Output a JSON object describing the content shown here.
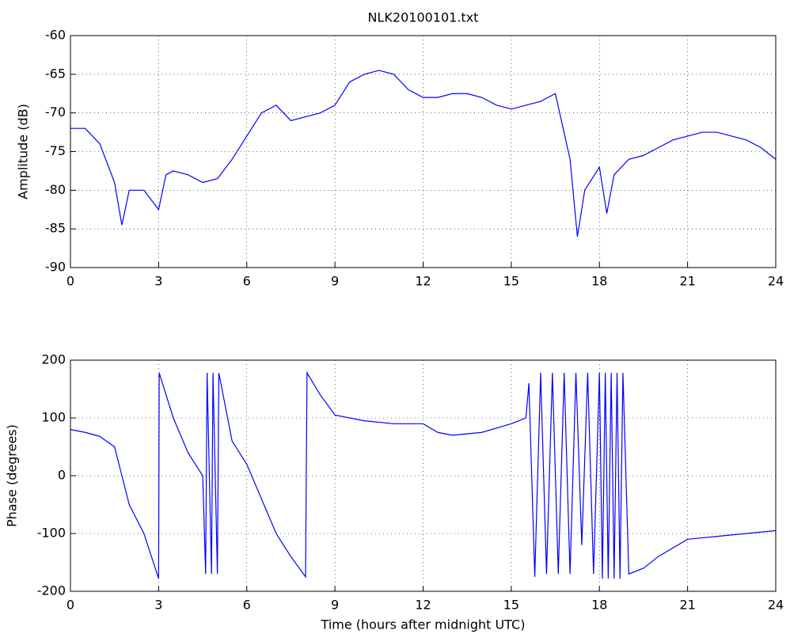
{
  "chart_data": [
    {
      "type": "line",
      "title": "NLK20100101.txt",
      "y_label": "Amplitude (dB)",
      "xlim": [
        0,
        24
      ],
      "xticks": [
        0,
        3,
        6,
        9,
        12,
        15,
        18,
        21,
        24
      ],
      "ylim": [
        -90,
        -60
      ],
      "yticks": [
        -90,
        -85,
        -80,
        -75,
        -70,
        -65,
        -60
      ],
      "grid": true,
      "x": [
        0,
        0.5,
        1,
        1.5,
        1.75,
        2,
        2.5,
        3,
        3.25,
        3.5,
        4,
        4.5,
        5,
        5.5,
        6,
        6.5,
        7,
        7.5,
        8,
        8.5,
        9,
        9.5,
        10,
        10.5,
        11,
        11.5,
        12,
        12.5,
        13,
        13.5,
        14,
        14.5,
        15,
        15.5,
        16,
        16.5,
        17,
        17.25,
        17.5,
        18,
        18.25,
        18.5,
        19,
        19.5,
        20,
        20.5,
        21,
        21.5,
        22,
        22.5,
        23,
        23.5,
        24
      ],
      "series": [
        {
          "color": "#0000ff",
          "values": [
            -72,
            -72,
            -74,
            -79,
            -84.5,
            -80,
            -80,
            -82.5,
            -78,
            -77.5,
            -78,
            -79,
            -78.5,
            -76,
            -73,
            -70,
            -69,
            -71,
            -70.5,
            -70,
            -69,
            -66,
            -65,
            -64.5,
            -65,
            -67,
            -68,
            -68,
            -67.5,
            -67.5,
            -68,
            -69,
            -69.5,
            -69,
            -68.5,
            -67.5,
            -76,
            -86,
            -80,
            -77,
            -83,
            -78,
            -76,
            -75.5,
            -74.5,
            -73.5,
            -73,
            -72.5,
            -72.5,
            -73,
            -73.5,
            -74.5,
            -76
          ]
        }
      ]
    },
    {
      "type": "line",
      "x_label": "Time (hours after midnight UTC)",
      "y_label": "Phase (degrees)",
      "xlim": [
        0,
        24
      ],
      "xticks": [
        0,
        3,
        6,
        9,
        12,
        15,
        18,
        21,
        24
      ],
      "ylim": [
        -200,
        200
      ],
      "yticks": [
        -200,
        -100,
        0,
        100,
        200
      ],
      "grid": true,
      "x": [
        0,
        0.5,
        1,
        1.5,
        1.75,
        2,
        2.5,
        3,
        3.02,
        3.5,
        4,
        4.5,
        4.6,
        4.65,
        4.8,
        4.85,
        5,
        5.05,
        5.5,
        6,
        6.5,
        7,
        7.5,
        8,
        8.05,
        8.5,
        9,
        10,
        11,
        12,
        12.5,
        13,
        14,
        15,
        15.5,
        15.6,
        15.8,
        16,
        16.2,
        16.4,
        16.6,
        16.8,
        17,
        17.2,
        17.4,
        17.6,
        17.8,
        18,
        18.1,
        18.2,
        18.3,
        18.4,
        18.5,
        18.6,
        18.7,
        18.8,
        19,
        19.5,
        20,
        20.5,
        21,
        22,
        23,
        24
      ],
      "series": [
        {
          "color": "#0000ff",
          "values": [
            80,
            75,
            68,
            50,
            0,
            -50,
            -100,
            -178,
            178,
            100,
            40,
            0,
            -170,
            178,
            -170,
            178,
            -170,
            178,
            60,
            20,
            -40,
            -100,
            -140,
            -175,
            178,
            140,
            105,
            95,
            90,
            90,
            75,
            70,
            75,
            90,
            100,
            160,
            -175,
            178,
            -170,
            178,
            -170,
            178,
            -170,
            178,
            -120,
            178,
            -170,
            178,
            -178,
            178,
            -178,
            178,
            -178,
            178,
            -178,
            178,
            -170,
            -160,
            -140,
            -125,
            -110,
            -105,
            -100,
            -95
          ]
        }
      ]
    }
  ]
}
